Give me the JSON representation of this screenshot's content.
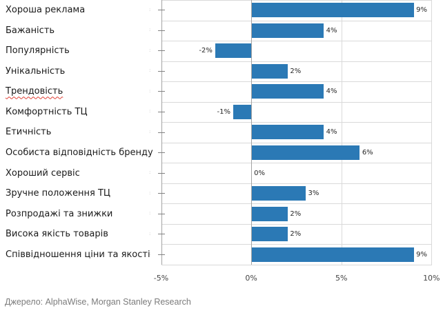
{
  "chart_data": {
    "type": "bar",
    "orientation": "horizontal",
    "title": "",
    "categories": [
      "Хороша реклама",
      "Бажаність",
      "Популярність",
      "Унікальність",
      "Трендовість",
      "Комфортність ТЦ",
      "Етичність",
      "Особиста відповідність бренду",
      "Хороший сервіс",
      "Зручне положення ТЦ",
      "Розпродажі та знижки",
      "Висока якість товарів",
      "Співвідношення ціни та якості"
    ],
    "values": [
      9,
      4,
      -2,
      2,
      4,
      -1,
      4,
      6,
      0,
      3,
      2,
      2,
      9
    ],
    "value_labels": [
      "9%",
      "4%",
      "-2%",
      "2%",
      "4%",
      "-1%",
      "4%",
      "6%",
      "0%",
      "3%",
      "2%",
      "2%",
      "9%"
    ],
    "misspelled_category_index": 4,
    "xlim": [
      -5,
      10
    ],
    "x_ticks": [
      {
        "value": -5,
        "label": "-5%"
      },
      {
        "value": 0,
        "label": "0%"
      },
      {
        "value": 5,
        "label": "5%"
      },
      {
        "value": 10,
        "label": "10%"
      }
    ],
    "grid": true,
    "legend": false,
    "bar_color": "#2b79b5",
    "gridline_color": "#d9d9d9",
    "axis_line_color": "#a3a3a3",
    "tick_color": "#7f7f7f"
  },
  "footer": {
    "source": "Джерело: AlphaWise, Morgan Stanley Research"
  }
}
